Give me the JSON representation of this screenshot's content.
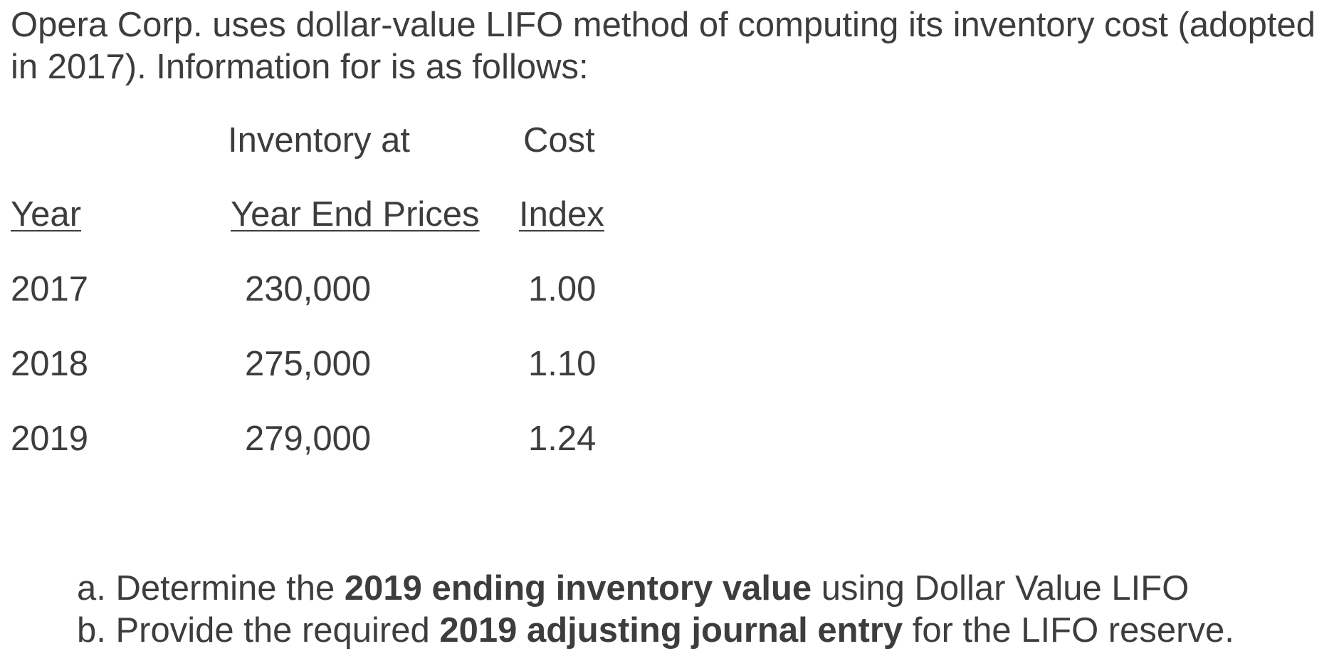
{
  "intro": "Opera Corp. uses dollar-value LIFO method of computing its inventory cost (adopted in 2017). Information for is as follows:",
  "table": {
    "header_top": {
      "inventory": "Inventory at",
      "cost": "Cost"
    },
    "header": {
      "year": "Year",
      "inventory": "Year End Prices",
      "cost": "Index"
    },
    "rows": [
      {
        "year": "2017",
        "inventory": "230,000",
        "index": "1.00"
      },
      {
        "year": "2018",
        "inventory": "275,000",
        "index": "1.10"
      },
      {
        "year": "2019",
        "inventory": "279,000",
        "index": "1.24"
      }
    ]
  },
  "questions": {
    "a": {
      "prefix": "a. Determine the ",
      "bold": "2019 ending inventory value",
      "suffix": " using Dollar Value LIFO"
    },
    "b": {
      "prefix": "b. Provide the required ",
      "bold": "2019 adjusting journal entry",
      "suffix": " for the LIFO reserve."
    }
  }
}
